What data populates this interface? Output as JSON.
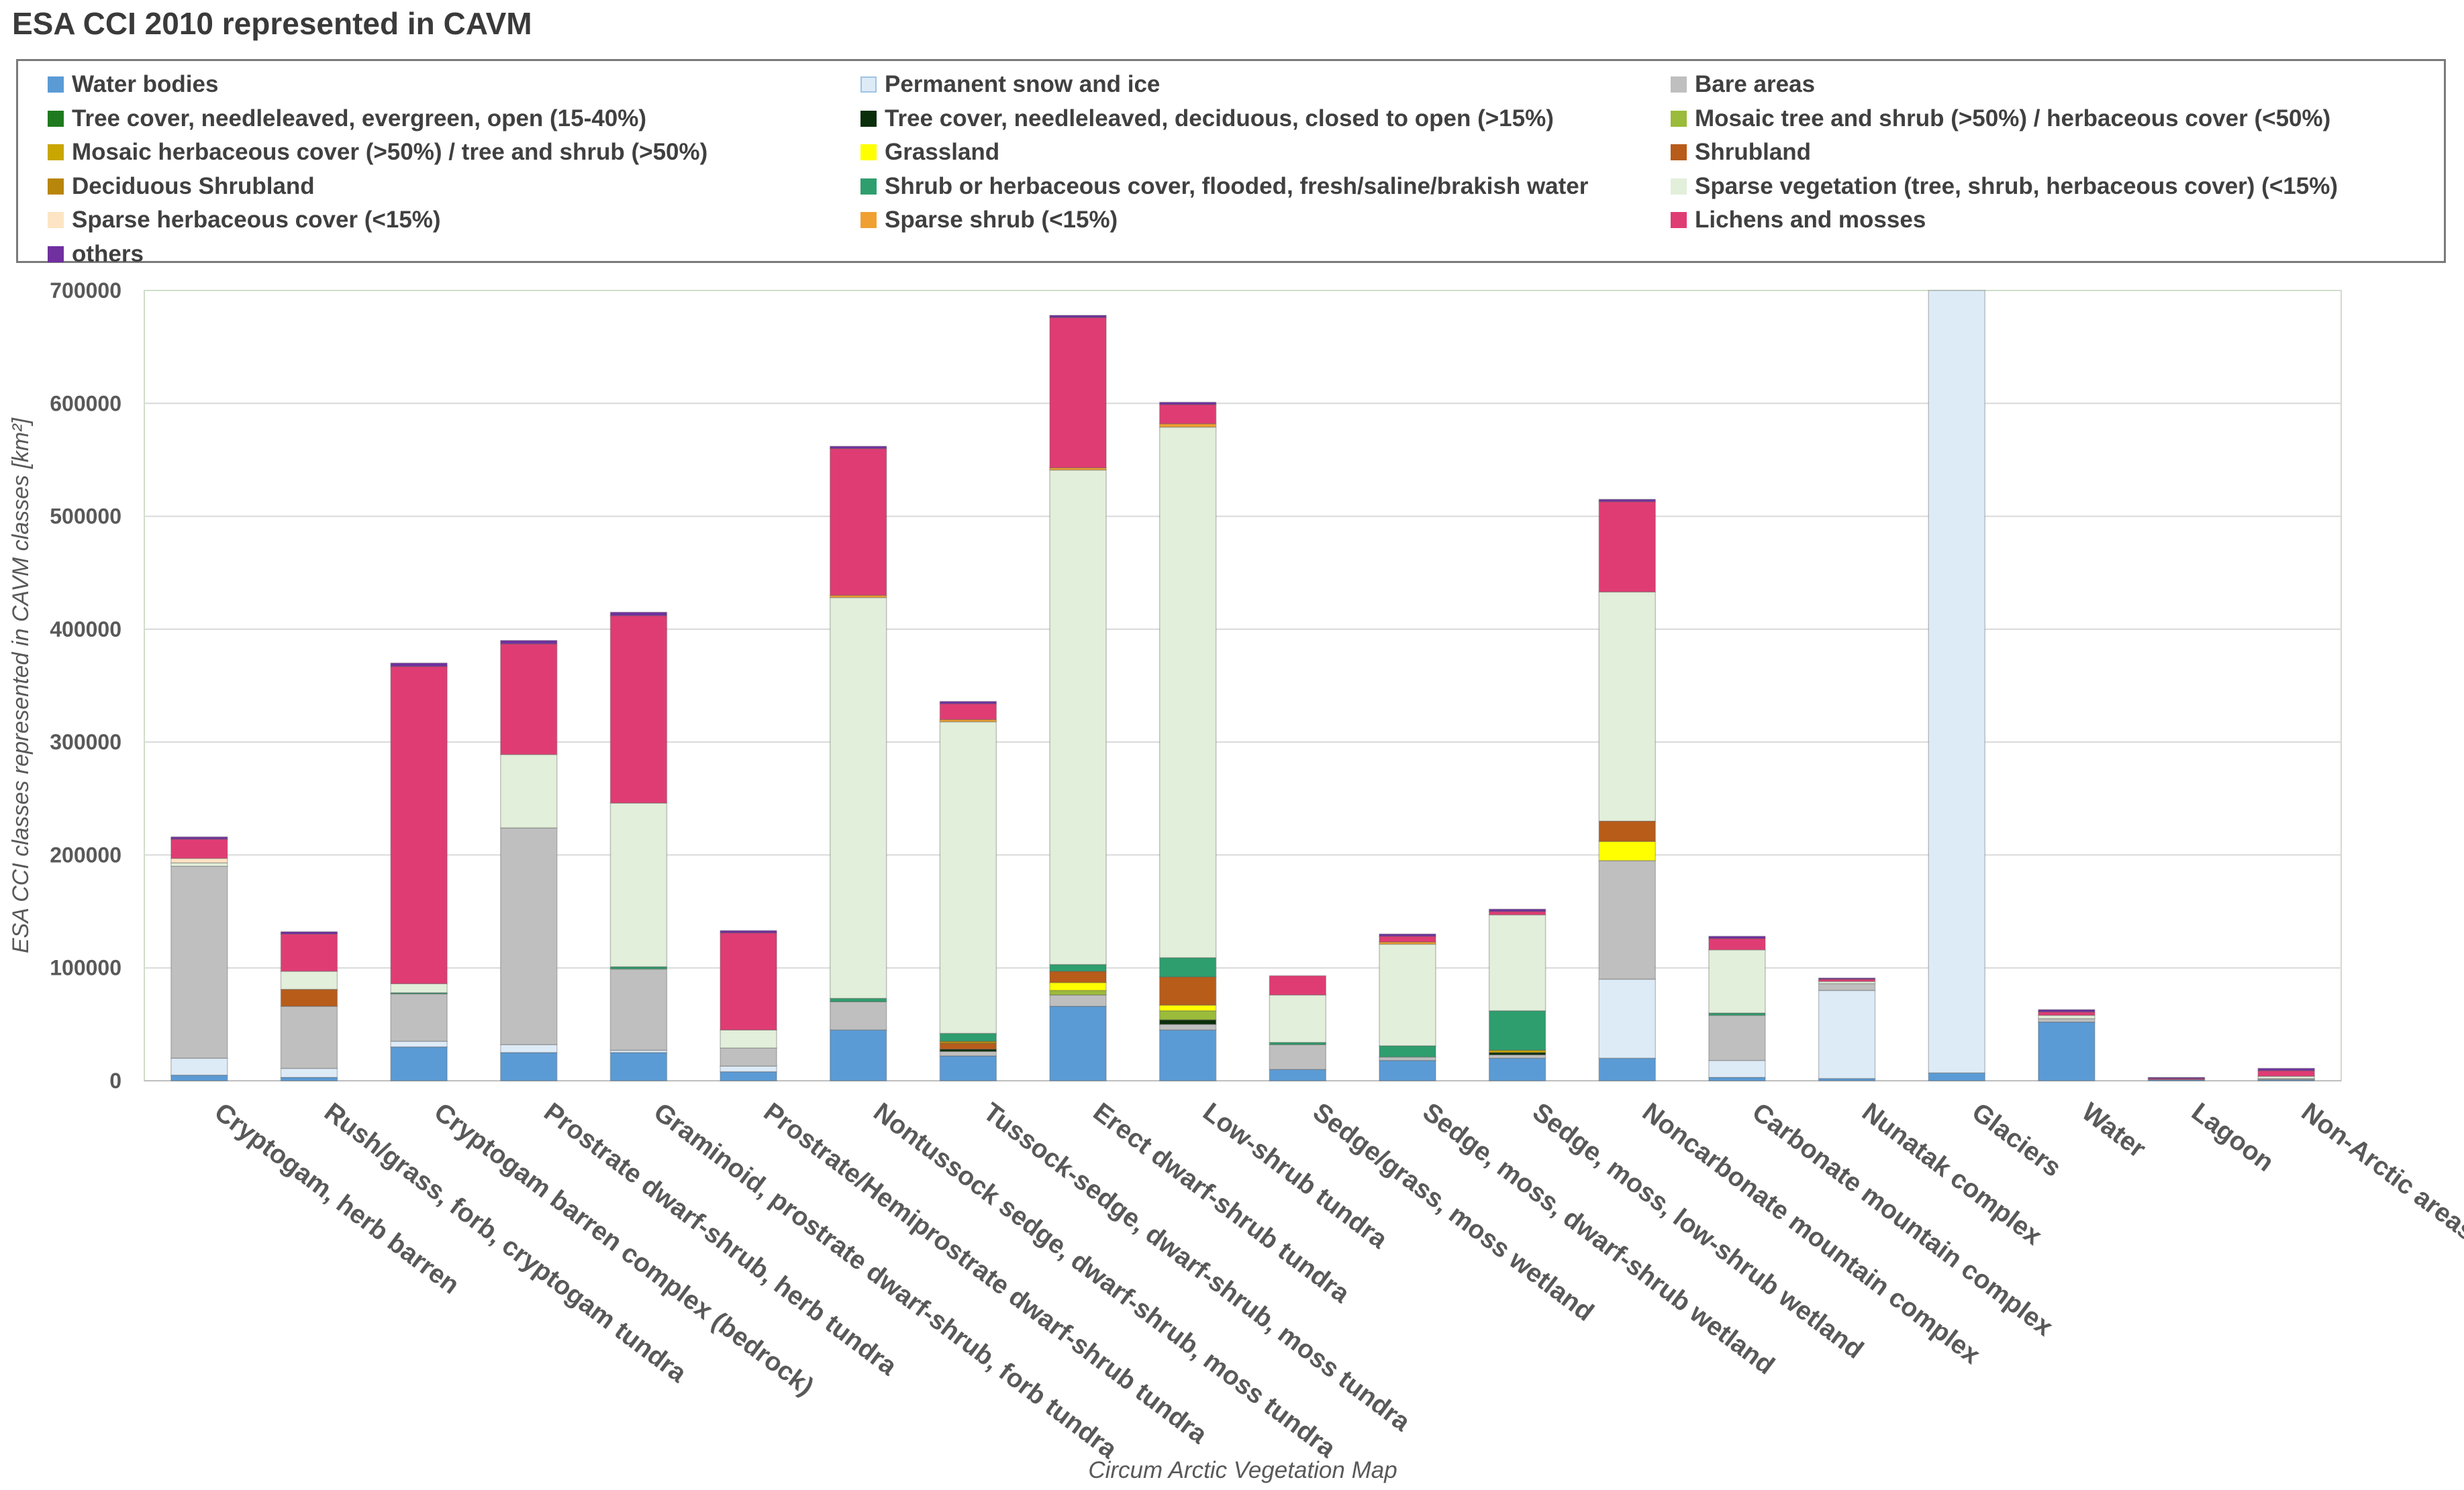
{
  "chart_data": {
    "type": "bar",
    "stacked": true,
    "title": "ESA CCI 2010 represented in  CAVM",
    "xlabel": "Circum Arctic Vegetation Map",
    "ylabel": "ESA CCI classes represented in CAVM classes  [km²]",
    "ylim": [
      0,
      700000
    ],
    "yticks": [
      "0",
      "100000",
      "200000",
      "300000",
      "400000",
      "500000",
      "600000",
      "700000"
    ],
    "legend_position": "top",
    "categories": [
      "Cryptogam, herb barren",
      "Rush/grass, forb, cryptogam tundra",
      "Cryptogam barren complex (bedrock)",
      "Prostrate dwarf-shrub, herb tundra",
      "Graminoid, prostrate dwarf-shrub, forb tundra",
      "Prostrate/Hemiprostrate dwarf-shrub tundra",
      "Nontussock sedge, dwarf-shrub, moss tundra",
      "Tussock-sedge, dwarf-shrub, moss tundra",
      "Erect dwarf-shrub tundra",
      "Low-shrub tundra",
      "Sedge/grass, moss wetland",
      "Sedge, moss, dwarf-shrub wetland",
      "Sedge, moss, low-shrub wetland",
      "Noncarbonate mountain complex",
      "Carbonate mountain complex",
      "Nunatak complex",
      "Glaciers",
      "Water",
      "Lagoon",
      "Non-Arctic areas"
    ],
    "series": [
      {
        "name": "Water bodies",
        "color": "#5b9bd5",
        "values": [
          5000,
          3000,
          30000,
          25000,
          25000,
          8000,
          45000,
          22000,
          66000,
          45000,
          10000,
          18000,
          20000,
          20000,
          3000,
          2000,
          7000,
          52000,
          1000,
          1000
        ]
      },
      {
        "name": "Permanent snow and ice",
        "color": "#ddebf7",
        "values": [
          15000,
          8000,
          5000,
          7000,
          2000,
          5000,
          0,
          0,
          0,
          0,
          0,
          0,
          0,
          70000,
          15000,
          78000,
          700000,
          0,
          0,
          0
        ]
      },
      {
        "name": "Bare areas",
        "color": "#bfbfbf",
        "values": [
          170000,
          55000,
          42000,
          192000,
          72000,
          16000,
          25000,
          4000,
          10000,
          5000,
          22000,
          3000,
          3000,
          105000,
          40000,
          6000,
          1000,
          3000,
          0,
          1000
        ]
      },
      {
        "name": "Tree cover, needleleaved, evergreen, open (15-40%)",
        "color": "#1f7a1f",
        "values": [
          0,
          0,
          0,
          0,
          0,
          0,
          0,
          0,
          0,
          0,
          0,
          0,
          0,
          0,
          0,
          0,
          0,
          0,
          0,
          0
        ]
      },
      {
        "name": "Tree cover, needleleaved, deciduous, closed to open (>15%)",
        "color": "#0b2e0b",
        "values": [
          0,
          0,
          0,
          0,
          0,
          0,
          0,
          2000,
          0,
          4000,
          0,
          0,
          2000,
          0,
          0,
          0,
          0,
          0,
          0,
          0
        ]
      },
      {
        "name": "Mosaic tree and shrub (>50%) / herbaceous cover (<50%)",
        "color": "#9bbb3b",
        "values": [
          0,
          0,
          0,
          0,
          0,
          0,
          0,
          0,
          4000,
          8000,
          0,
          0,
          0,
          0,
          0,
          0,
          0,
          0,
          0,
          0
        ]
      },
      {
        "name": "Mosaic herbaceous cover (>50%) / tree and shrub (>50%)",
        "color": "#c9a600",
        "values": [
          0,
          0,
          0,
          0,
          0,
          0,
          0,
          0,
          0,
          0,
          0,
          0,
          2000,
          0,
          0,
          0,
          0,
          0,
          0,
          0
        ]
      },
      {
        "name": "Grassland",
        "color": "#ffff00",
        "values": [
          0,
          0,
          0,
          0,
          0,
          0,
          0,
          0,
          7000,
          5000,
          0,
          0,
          0,
          17000,
          0,
          0,
          0,
          0,
          0,
          0
        ]
      },
      {
        "name": "Shrubland",
        "color": "#b85c1a",
        "values": [
          0,
          15000,
          0,
          0,
          0,
          0,
          0,
          5000,
          10000,
          25000,
          0,
          0,
          0,
          18000,
          0,
          0,
          0,
          0,
          0,
          0
        ]
      },
      {
        "name": "Deciduous Shrubland",
        "color": "#b8860b",
        "values": [
          0,
          0,
          0,
          0,
          0,
          0,
          0,
          2000,
          0,
          0,
          0,
          0,
          0,
          0,
          0,
          0,
          0,
          0,
          0,
          0
        ]
      },
      {
        "name": "Shrub or herbaceous cover, flooded, fresh/saline/brakish water",
        "color": "#2e9e6e",
        "values": [
          0,
          0,
          1000,
          0,
          2000,
          0,
          3000,
          7000,
          6000,
          17000,
          2000,
          10000,
          35000,
          0,
          2000,
          0,
          0,
          0,
          0,
          0
        ]
      },
      {
        "name": "Sparse vegetation (tree, shrub, herbaceous cover) (<15%)",
        "color": "#e2efda",
        "values": [
          3000,
          16000,
          8000,
          65000,
          145000,
          16000,
          355000,
          276000,
          438000,
          470000,
          42000,
          90000,
          85000,
          203000,
          56000,
          2000,
          0,
          3000,
          0,
          2000
        ]
      },
      {
        "name": "Sparse herbaceous cover (<15%)",
        "color": "#fce4c4",
        "values": [
          4000,
          0,
          0,
          0,
          0,
          0,
          0,
          0,
          0,
          0,
          0,
          0,
          0,
          0,
          0,
          0,
          0,
          0,
          0,
          0
        ]
      },
      {
        "name": "Sparse shrub (<15%)",
        "color": "#f0a030",
        "values": [
          0,
          0,
          0,
          0,
          0,
          0,
          2000,
          2000,
          2000,
          3000,
          0,
          2000,
          0,
          0,
          0,
          0,
          0,
          0,
          0,
          0
        ]
      },
      {
        "name": "Lichens and mosses",
        "color": "#e03c74",
        "values": [
          17000,
          33000,
          281000,
          98000,
          166000,
          86000,
          130000,
          14000,
          133000,
          17000,
          17000,
          5000,
          3000,
          80000,
          10000,
          2000,
          0,
          3000,
          1000,
          5000
        ]
      },
      {
        "name": "others",
        "color": "#7030a0",
        "values": [
          2000,
          2000,
          3000,
          3000,
          3000,
          2000,
          2000,
          2000,
          2000,
          2000,
          0,
          2000,
          2000,
          2000,
          2000,
          1000,
          0,
          2000,
          1000,
          2000
        ]
      }
    ]
  }
}
